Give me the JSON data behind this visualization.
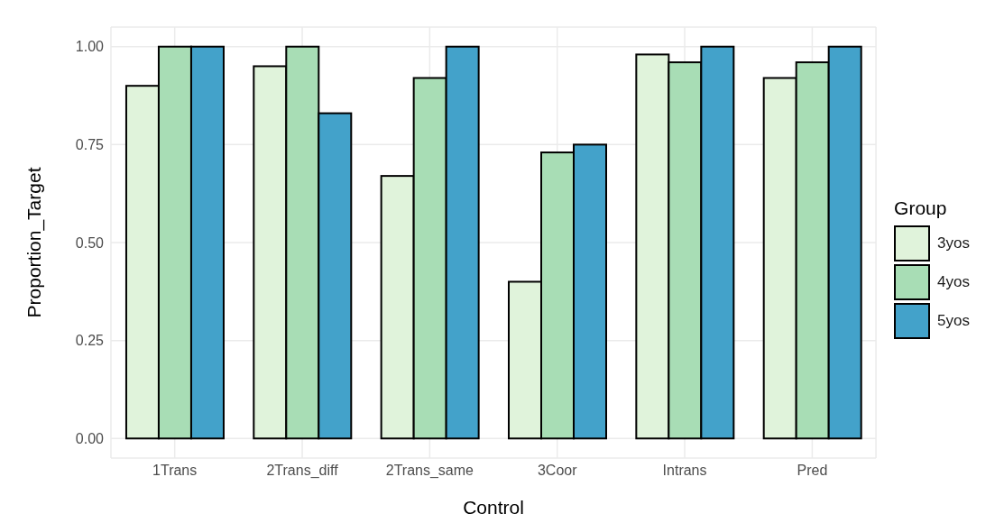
{
  "chart_data": {
    "type": "bar",
    "xlabel": "Control",
    "ylabel": "Proportion_Target",
    "legend_title": "Group",
    "categories": [
      "1Trans",
      "2Trans_diff",
      "2Trans_same",
      "3Coor",
      "Intrans",
      "Pred"
    ],
    "series": [
      {
        "name": "3yos",
        "color": "#e0f3db",
        "values": [
          0.9,
          0.95,
          0.67,
          0.4,
          0.98,
          0.92
        ]
      },
      {
        "name": "4yos",
        "color": "#a8ddb5",
        "values": [
          1,
          1,
          0.92,
          0.73,
          0.96,
          0.96
        ]
      },
      {
        "name": "5yos",
        "color": "#43a2ca",
        "values": [
          1,
          0.83,
          1,
          0.75,
          1,
          1
        ]
      }
    ],
    "ylim": [
      -0.05,
      1.05
    ],
    "yticks": [
      {
        "value": 0,
        "label": "0.00"
      },
      {
        "value": 0.25,
        "label": "0.25"
      },
      {
        "value": 0.5,
        "label": "0.50"
      },
      {
        "value": 0.75,
        "label": "0.75"
      },
      {
        "value": 1,
        "label": "1.00"
      }
    ],
    "grid": true,
    "legend": "right"
  }
}
